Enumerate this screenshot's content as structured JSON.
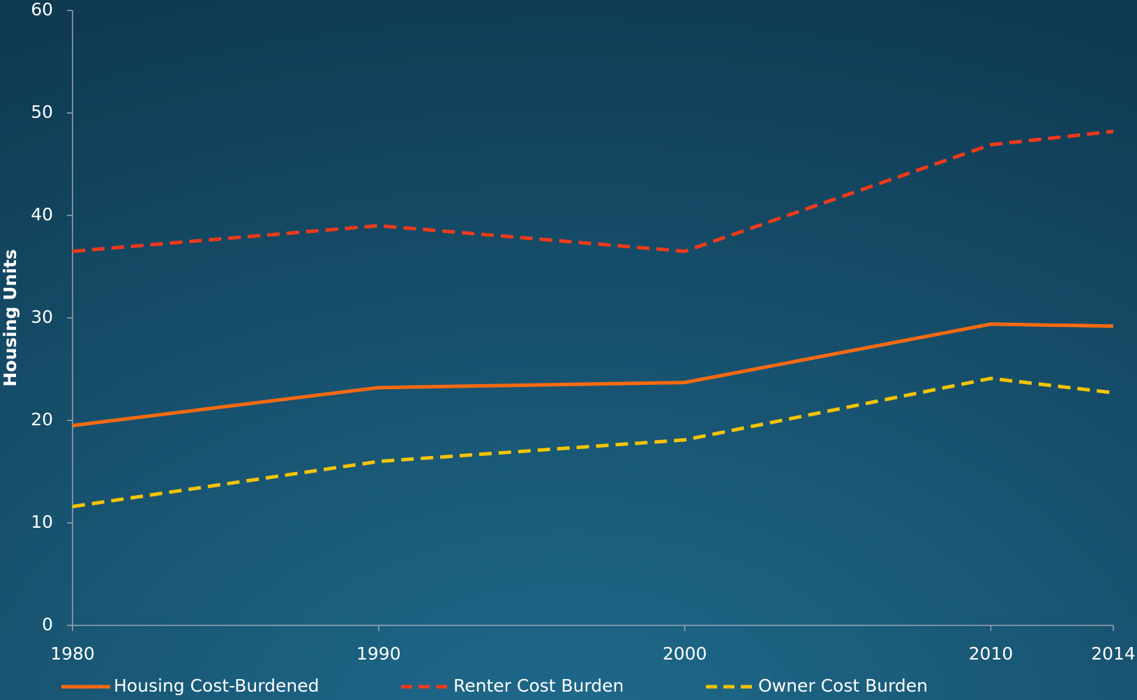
{
  "chart_data": {
    "type": "line",
    "y_label": "Housing Units",
    "x": [
      1980,
      1990,
      2000,
      2010,
      2014
    ],
    "xlim": [
      1980,
      2014
    ],
    "xticks": [
      1980,
      1990,
      2000,
      2010,
      2014
    ],
    "ylim": [
      0,
      60
    ],
    "yticks": [
      0,
      10,
      20,
      30,
      40,
      50,
      60
    ],
    "grid": false,
    "legend": "bottom",
    "series": [
      {
        "name": "Housing Cost-Burdened",
        "color": "#ff6a10",
        "style": "solid",
        "values": [
          19.5,
          23.2,
          23.7,
          29.4,
          29.2
        ]
      },
      {
        "name": "Renter Cost Burden",
        "color": "#f03a1a",
        "style": "dashed",
        "values": [
          36.5,
          39,
          36.5,
          46.9,
          48.2
        ]
      },
      {
        "name": "Owner Cost Burden",
        "color": "#f5c400",
        "style": "dashed",
        "values": [
          11.6,
          16,
          18.1,
          24.1,
          22.7
        ]
      }
    ]
  }
}
